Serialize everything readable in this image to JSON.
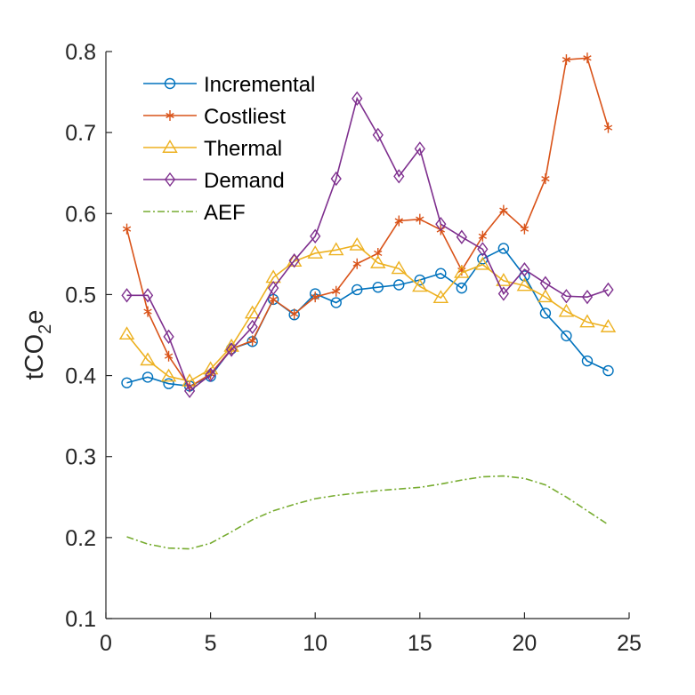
{
  "chart_data": {
    "type": "line",
    "title": "",
    "xlabel": "",
    "ylabel_main": "tCO",
    "ylabel_sub": "2",
    "ylabel_tail": "e",
    "xlim": [
      0,
      25
    ],
    "ylim": [
      0.1,
      0.8
    ],
    "xticks": [
      0,
      5,
      10,
      15,
      20,
      25
    ],
    "yticks": [
      0.1,
      0.2,
      0.3,
      0.4,
      0.5,
      0.6,
      0.7,
      0.8
    ],
    "xtick_labels": [
      "0",
      "5",
      "10",
      "15",
      "20",
      "25"
    ],
    "ytick_labels": [
      "0.1",
      "0.2",
      "0.3",
      "0.4",
      "0.5",
      "0.6",
      "0.7",
      "0.8"
    ],
    "grid": false,
    "legend_placement": "top-left",
    "x": [
      1,
      2,
      3,
      4,
      5,
      6,
      7,
      8,
      9,
      10,
      11,
      12,
      13,
      14,
      15,
      16,
      17,
      18,
      19,
      20,
      21,
      22,
      23,
      24
    ],
    "series": [
      {
        "name": "Incremental",
        "color": "#0072BD",
        "marker": "circle",
        "line": "solid",
        "values": [
          0.391,
          0.398,
          0.39,
          0.387,
          0.399,
          0.433,
          0.442,
          0.494,
          0.475,
          0.501,
          0.49,
          0.506,
          0.509,
          0.512,
          0.518,
          0.526,
          0.508,
          0.544,
          0.557,
          0.523,
          0.477,
          0.449,
          0.418,
          0.406
        ]
      },
      {
        "name": "Costliest",
        "color": "#D95319",
        "marker": "asterisk",
        "line": "solid",
        "values": [
          0.581,
          0.479,
          0.424,
          0.386,
          0.402,
          0.433,
          0.443,
          0.494,
          0.476,
          0.497,
          0.504,
          0.538,
          0.551,
          0.591,
          0.593,
          0.58,
          0.53,
          0.572,
          0.604,
          0.581,
          0.643,
          0.79,
          0.792,
          0.706
        ]
      },
      {
        "name": "Thermal",
        "color": "#EDB120",
        "marker": "triangle",
        "line": "solid",
        "values": [
          0.451,
          0.419,
          0.399,
          0.393,
          0.408,
          0.436,
          0.477,
          0.521,
          0.541,
          0.551,
          0.555,
          0.561,
          0.539,
          0.532,
          0.51,
          0.496,
          0.527,
          0.537,
          0.517,
          0.511,
          0.497,
          0.479,
          0.466,
          0.46
        ]
      },
      {
        "name": "Demand",
        "color": "#7E2F8E",
        "marker": "diamond",
        "line": "solid",
        "values": [
          0.499,
          0.499,
          0.448,
          0.381,
          0.401,
          0.432,
          0.46,
          0.508,
          0.542,
          0.572,
          0.643,
          0.742,
          0.697,
          0.646,
          0.68,
          0.587,
          0.571,
          0.556,
          0.501,
          0.531,
          0.514,
          0.498,
          0.497,
          0.506
        ]
      },
      {
        "name": "AEF",
        "color": "#77AC30",
        "marker": "none",
        "line": "dashdot",
        "values": [
          0.201,
          0.192,
          0.187,
          0.186,
          0.193,
          0.207,
          0.222,
          0.233,
          0.241,
          0.248,
          0.252,
          0.255,
          0.258,
          0.26,
          0.262,
          0.266,
          0.271,
          0.275,
          0.276,
          0.273,
          0.265,
          0.25,
          0.233,
          0.216
        ]
      }
    ]
  }
}
